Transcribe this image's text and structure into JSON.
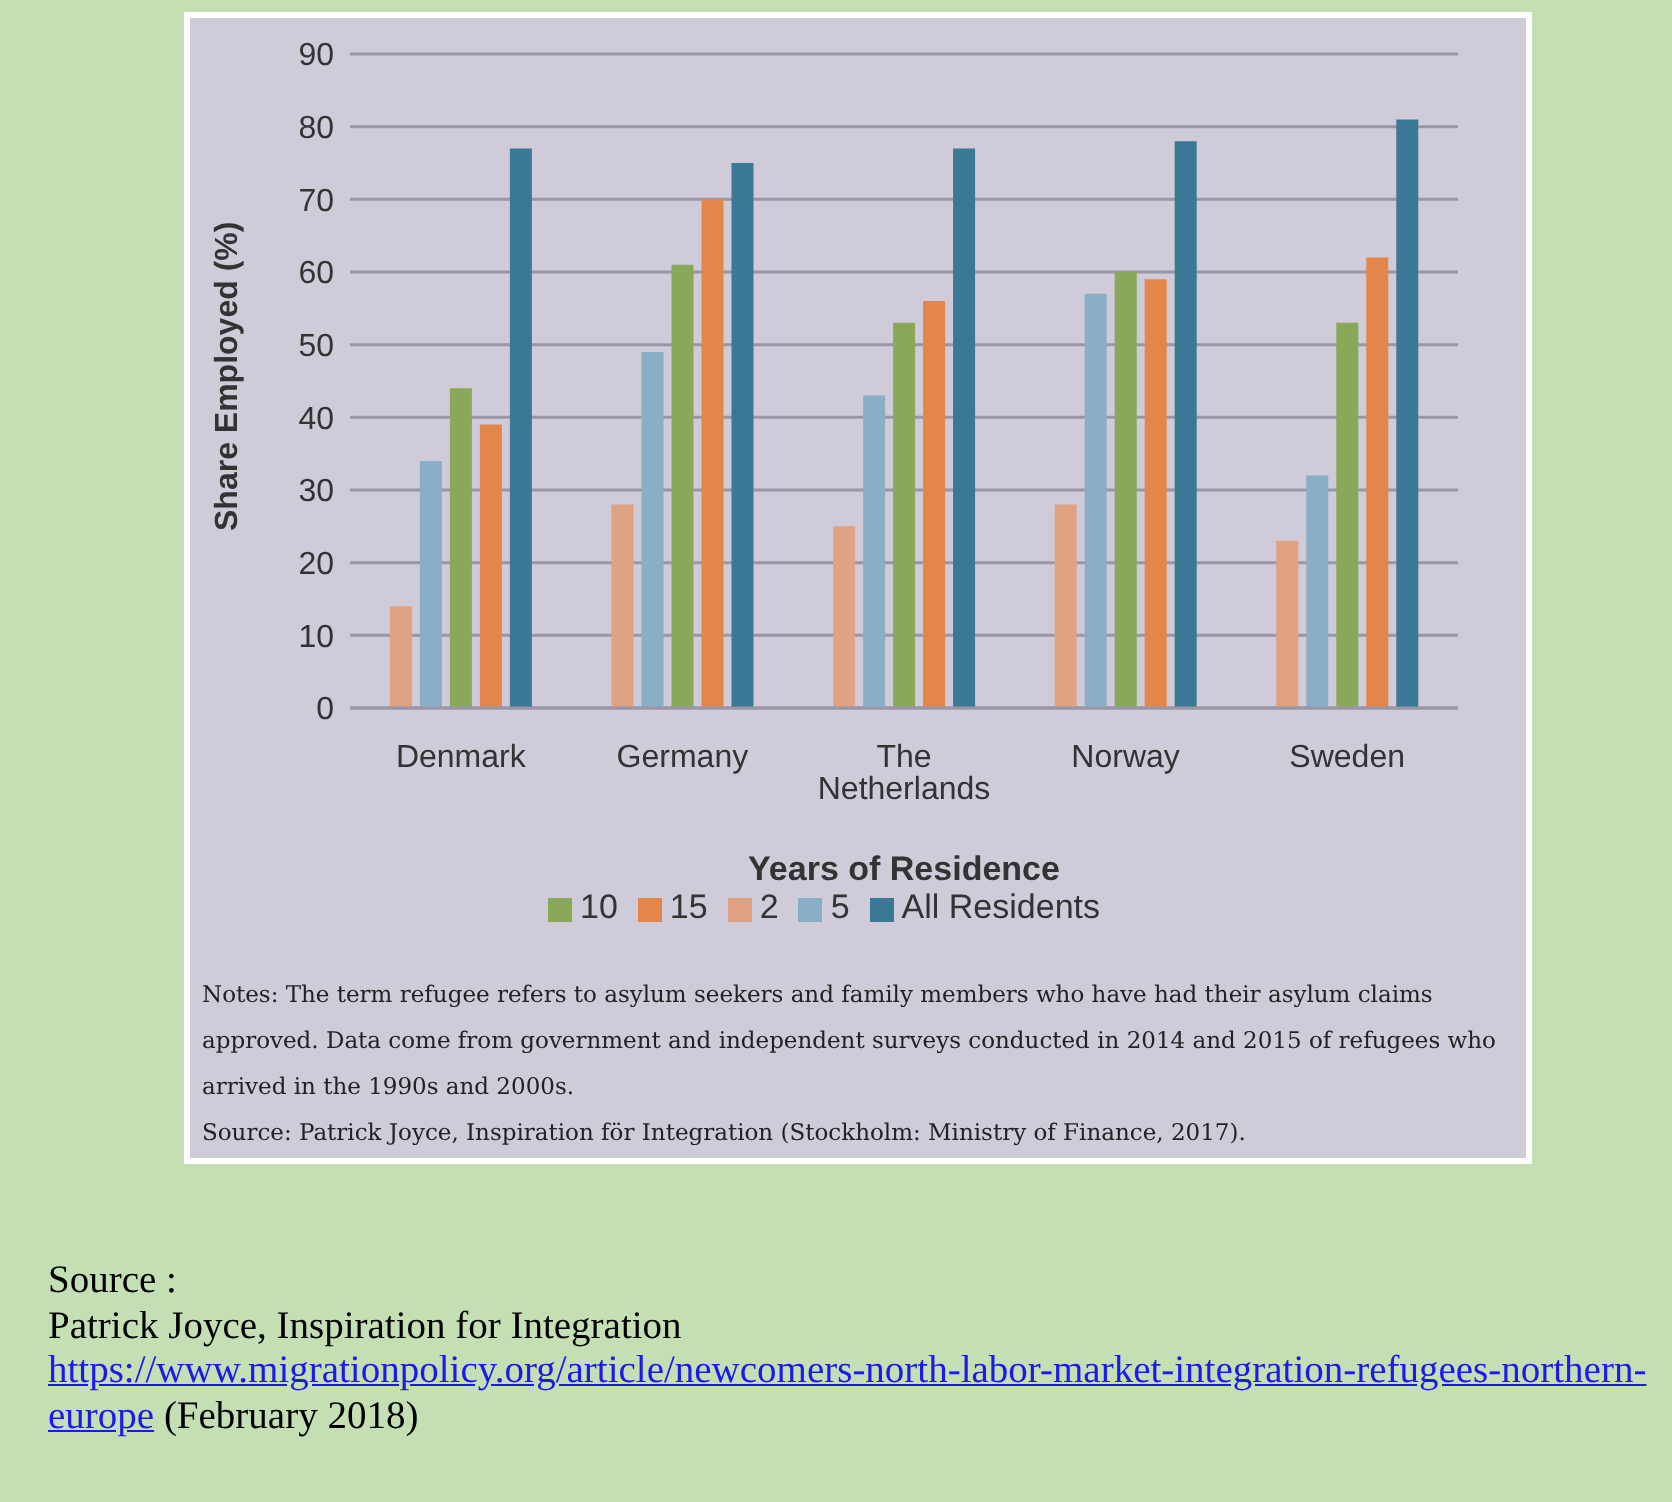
{
  "chart_data": {
    "type": "bar",
    "xlabel": "Years of Residence",
    "ylabel": "Share Employed (%)",
    "categories": [
      "Denmark",
      "Germany",
      "The Netherlands",
      "Norway",
      "Sweden"
    ],
    "series": [
      {
        "name": "2",
        "color": "#dfa283",
        "values": [
          14,
          28,
          25,
          28,
          23
        ]
      },
      {
        "name": "5",
        "color": "#8aaec6",
        "values": [
          34,
          49,
          43,
          57,
          32
        ]
      },
      {
        "name": "10",
        "color": "#8aa85a",
        "values": [
          44,
          61,
          53,
          60,
          53
        ]
      },
      {
        "name": "15",
        "color": "#e3864a",
        "values": [
          39,
          70,
          56,
          59,
          62
        ]
      },
      {
        "name": "All Residents",
        "color": "#3a7895",
        "values": [
          77,
          75,
          77,
          78,
          81
        ]
      }
    ],
    "ylim": [
      0,
      90
    ],
    "yticks": [
      0,
      10,
      20,
      30,
      40,
      50,
      60,
      70,
      80,
      90
    ],
    "grid": "y",
    "legend": "bottom",
    "annotations": [
      "Notes: The term refugee refers to asylum seekers and family members who have had their asylum claims approved. Data come from government and independent surveys conducted in 2014 and 2015 of refugees who arrived in the 1990s and 2000s.",
      "Source: Patrick Joyce, Inspiration för Integration (Stockholm: Ministry of Finance, 2017).",
      "Source :",
      "Patrick Joyce, Inspiration for Integration",
      "https://www.migrationpolicy.org/article/newcomers-north-labor-market-integration-refugees-northern-europe",
      "(February 2018)"
    ]
  }
}
